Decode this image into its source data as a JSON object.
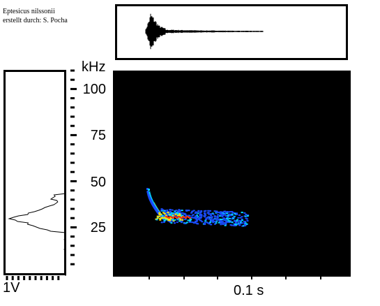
{
  "caption": {
    "species": "Eptesicus nilssonii",
    "author": "erstellt durch: S. Pocha"
  },
  "frequency_axis": {
    "unit": "kHz",
    "ticks": [
      "100",
      "75",
      "50",
      "25"
    ]
  },
  "time_axis": {
    "tick": "0.1 s"
  },
  "amplitude_axis": {
    "label": "1V"
  },
  "colors": {
    "spectrogram_background": "#000000",
    "weak": "#1a4dff",
    "medium": "#00d4ff",
    "strong": "#ffe600",
    "peak": "#ff3300"
  }
}
